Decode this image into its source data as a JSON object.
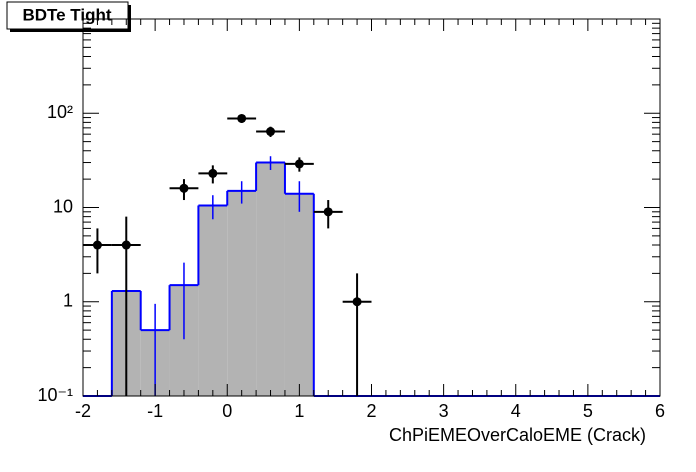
{
  "chart_data": {
    "type": "histogram",
    "title": "BDTe Tight",
    "x_label": "ChPiEMEOverCaloEME (Crack)",
    "bins": [
      -2,
      -1.6,
      -1.2,
      -0.8,
      -0.4,
      0,
      0.4,
      0.8,
      1.2,
      1.6,
      2,
      2.4,
      2.8,
      3.2,
      3.6,
      4,
      4.4,
      4.8,
      5.2,
      5.6,
      6
    ],
    "series": [
      {
        "style": "filled-step",
        "color": "#0000ff",
        "fill": "#b3b3b3",
        "values": [
          0,
          1.3,
          0.5,
          1.5,
          10.5,
          15,
          30,
          14,
          0,
          0,
          0,
          0,
          0,
          0,
          0,
          0,
          0,
          0,
          0,
          0
        ],
        "errors": [
          0,
          1.3,
          0.45,
          1.1,
          3,
          4,
          5,
          5,
          0,
          0,
          0,
          0,
          0,
          0,
          0,
          0,
          0,
          0,
          0,
          0
        ]
      },
      {
        "style": "points",
        "color": "#000000",
        "values": [
          4,
          4,
          null,
          16,
          23,
          88,
          64,
          29,
          9,
          1,
          null,
          null,
          null,
          null,
          null,
          null,
          null,
          null,
          null,
          null
        ],
        "errors": [
          2,
          4,
          null,
          4,
          5,
          9,
          8,
          5,
          3,
          1,
          null,
          null,
          null,
          null,
          null,
          null,
          null,
          null,
          null,
          null
        ]
      }
    ],
    "xlim": [
      -2,
      6
    ],
    "xticks": [
      -2,
      -1,
      0,
      1,
      2,
      3,
      4,
      5,
      6
    ],
    "ylim": [
      0.1,
      1000
    ],
    "yticks": [
      {
        "value": 0.1,
        "label": "10⁻¹"
      },
      1,
      10,
      {
        "value": 100,
        "label": "10²"
      }
    ],
    "log_y": true
  }
}
